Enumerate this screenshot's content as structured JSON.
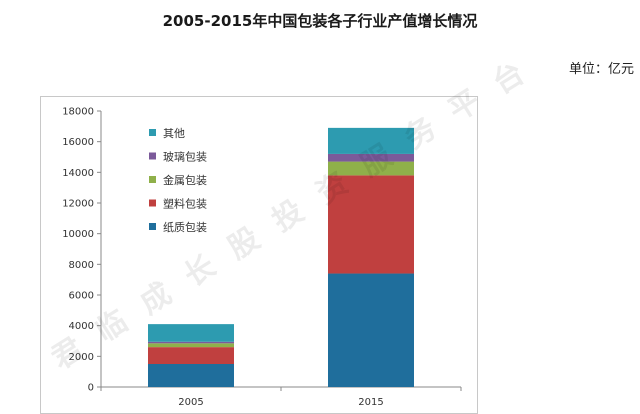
{
  "title": "2005-2015年中国包装各子行业产值增长情况",
  "unit": "单位：亿元",
  "watermark": "君临成长股投资服务平台",
  "chart_data": {
    "type": "bar",
    "stacked": true,
    "categories": [
      "2005",
      "2015"
    ],
    "series": [
      {
        "name": "纸质包装",
        "color": "#1f6e9c",
        "values": [
          1500,
          7400
        ]
      },
      {
        "name": "塑料包装",
        "color": "#c0403f",
        "values": [
          1100,
          6400
        ]
      },
      {
        "name": "金属包装",
        "color": "#8fb04a",
        "values": [
          250,
          900
        ]
      },
      {
        "name": "玻璃包装",
        "color": "#7b5a9a",
        "values": [
          100,
          500
        ]
      },
      {
        "name": "其他",
        "color": "#2d9bb0",
        "values": [
          1150,
          1700
        ]
      }
    ],
    "ylim": [
      0,
      18000
    ],
    "yticks": [
      0,
      2000,
      4000,
      6000,
      8000,
      10000,
      12000,
      14000,
      16000,
      18000
    ],
    "xlabel": "",
    "ylabel": "",
    "legend_position": "top-left",
    "legend_order": [
      "其他",
      "玻璃包装",
      "金属包装",
      "塑料包装",
      "纸质包装"
    ],
    "grid": false
  }
}
